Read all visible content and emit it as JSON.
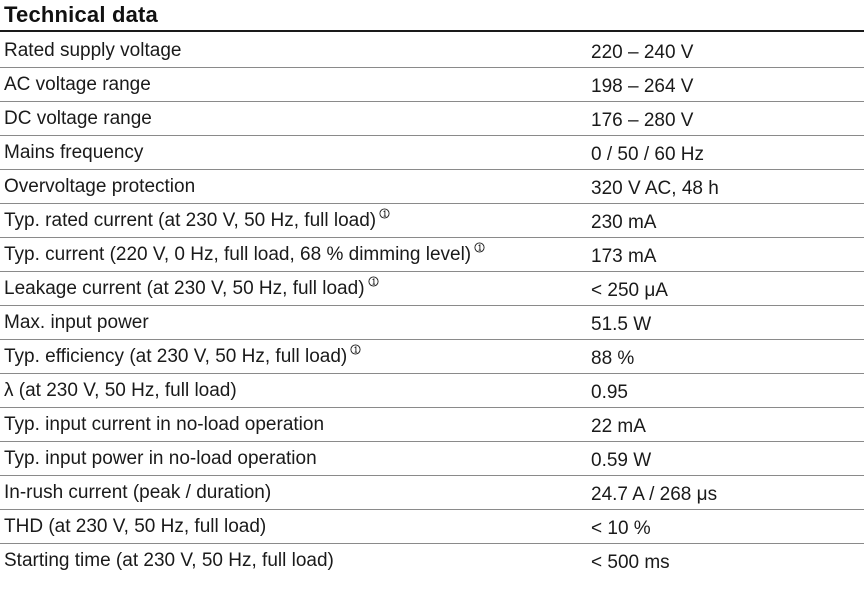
{
  "title": "Technical data",
  "rows": [
    {
      "label": "Rated supply voltage",
      "value": "220 – 240 V",
      "note": false
    },
    {
      "label": "AC voltage range",
      "value": "198 – 264 V",
      "note": false
    },
    {
      "label": "DC voltage range",
      "value": "176 – 280 V",
      "note": false
    },
    {
      "label": "Mains frequency",
      "value": "0 / 50 / 60 Hz",
      "note": false
    },
    {
      "label": "Overvoltage protection",
      "value": "320 V AC, 48 h",
      "note": false
    },
    {
      "label": "Typ. rated current (at 230 V, 50 Hz, full load)",
      "value": "230 mA",
      "note": true
    },
    {
      "label": "Typ. current (220 V, 0 Hz, full load, 68 % dimming level)",
      "value": "173 mA",
      "note": true
    },
    {
      "label": "Leakage current (at 230 V, 50 Hz, full load)",
      "value": "< 250 μA",
      "note": true
    },
    {
      "label": "Max. input power",
      "value": "51.5 W",
      "note": false
    },
    {
      "label": "Typ. efficiency (at 230 V, 50 Hz, full load)",
      "value": "88 %",
      "note": true
    },
    {
      "label": "λ (at 230 V, 50 Hz, full load)",
      "value": "0.95",
      "note": false
    },
    {
      "label": "Typ. input current in no-load operation",
      "value": "22 mA",
      "note": false
    },
    {
      "label": "Typ. input power in no-load operation",
      "value": "0.59 W",
      "note": false
    },
    {
      "label": "In-rush current (peak / duration)",
      "value": "24.7 A / 268 μs",
      "note": false
    },
    {
      "label": "THD (at 230 V, 50 Hz, full load)",
      "value": "< 10 %",
      "note": false
    },
    {
      "label": "Starting time (at 230 V, 50 Hz, full load)",
      "value": "< 500 ms",
      "note": false
    }
  ],
  "footnote_icon": "footnote-1-icon"
}
